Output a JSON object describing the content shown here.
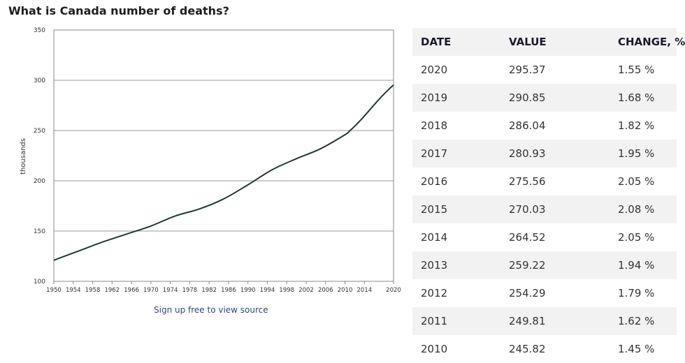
{
  "page": {
    "title": "What is Canada number of deaths?",
    "source_link": "Sign up free to view source"
  },
  "colors": {
    "line": "#1c3d2c",
    "grid": "#999999",
    "row_alt": "#f2f2f2"
  },
  "chart_data": {
    "type": "line",
    "title": "",
    "xlabel": "",
    "ylabel": "thousands",
    "xlim": [
      1950,
      2020
    ],
    "ylim": [
      100,
      350
    ],
    "yticks": [
      100,
      150,
      200,
      250,
      300,
      350
    ],
    "xticks": [
      1950,
      1954,
      1958,
      1962,
      1966,
      1970,
      1974,
      1978,
      1982,
      1986,
      1990,
      1994,
      1998,
      2002,
      2006,
      2010,
      2014,
      2020
    ],
    "grid": "horizontal",
    "legend": "none",
    "series": [
      {
        "x": [
          1950,
          1955,
          1960,
          1965,
          1970,
          1975,
          1980,
          1985,
          1990,
          1995,
          2000,
          2005,
          2010,
          2011,
          2012,
          2013,
          2014,
          2015,
          2016,
          2017,
          2018,
          2019,
          2020
        ],
        "values": [
          121,
          130,
          139,
          147,
          155,
          165,
          172,
          182,
          196,
          211,
          222,
          232,
          245.82,
          249.81,
          254.29,
          259.22,
          264.52,
          270.03,
          275.56,
          280.93,
          286.04,
          290.85,
          295.37
        ]
      }
    ]
  },
  "table": {
    "headers": [
      "DATE",
      "VALUE",
      "CHANGE, %"
    ],
    "rows": [
      [
        "2020",
        "295.37",
        "1.55 %"
      ],
      [
        "2019",
        "290.85",
        "1.68 %"
      ],
      [
        "2018",
        "286.04",
        "1.82 %"
      ],
      [
        "2017",
        "280.93",
        "1.95 %"
      ],
      [
        "2016",
        "275.56",
        "2.05 %"
      ],
      [
        "2015",
        "270.03",
        "2.08 %"
      ],
      [
        "2014",
        "264.52",
        "2.05 %"
      ],
      [
        "2013",
        "259.22",
        "1.94 %"
      ],
      [
        "2012",
        "254.29",
        "1.79 %"
      ],
      [
        "2011",
        "249.81",
        "1.62 %"
      ],
      [
        "2010",
        "245.82",
        "1.45 %"
      ]
    ]
  }
}
